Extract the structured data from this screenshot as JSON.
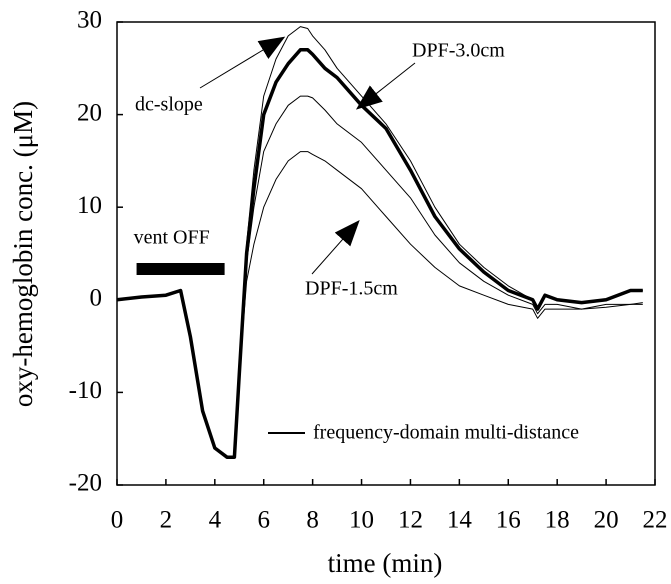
{
  "chart_data": {
    "type": "line",
    "x_label": "time (min)",
    "y_label": "oxy-hemoglobin conc. (μM)",
    "xlim": [
      0,
      22
    ],
    "xticks": [
      0,
      2,
      4,
      6,
      8,
      10,
      12,
      14,
      16,
      18,
      20,
      22
    ],
    "ylim": [
      -20,
      30
    ],
    "yticks": [
      -20,
      -10,
      0,
      10,
      20,
      30
    ],
    "legend": "lower right",
    "x": [
      0,
      1,
      2,
      2.6,
      3,
      3.5,
      4,
      4.5,
      4.8,
      5,
      5.3,
      5.6,
      6,
      6.5,
      7,
      7.5,
      7.8,
      8,
      8.5,
      9,
      10,
      11,
      12,
      13,
      14,
      15,
      16,
      17,
      17.2,
      17.5,
      18,
      19,
      20,
      21,
      21.5
    ],
    "series": [
      {
        "name": "frequency-domain multi-distance",
        "color": "#000000",
        "width": 3.5,
        "values": [
          0,
          0.3,
          0.5,
          1,
          -4,
          -12,
          -16,
          -17,
          -17,
          -8,
          5,
          12,
          20,
          23.5,
          25.5,
          27,
          27,
          26.5,
          25,
          24,
          21,
          18.5,
          14,
          9,
          5.5,
          3,
          1,
          0,
          -1,
          0.5,
          0,
          -0.3,
          0,
          1,
          1
        ]
      },
      {
        "name": "dc-slope",
        "color": "#000000",
        "width": 1,
        "values": [
          0,
          0.3,
          0.5,
          1,
          -4,
          -12,
          -16,
          -17,
          -17,
          -8,
          6,
          14,
          22,
          26,
          28.5,
          29.5,
          29.3,
          28.5,
          27,
          25,
          22,
          19,
          15,
          10,
          6,
          3.5,
          1.5,
          0,
          -1,
          0.5,
          0,
          -0.3,
          0,
          1,
          1
        ]
      },
      {
        "name": "DPF-3.0cm",
        "color": "#000000",
        "width": 1,
        "values": [
          0,
          0.3,
          0.5,
          1,
          -4,
          -12,
          -16,
          -17,
          -17,
          -8,
          4,
          10,
          16,
          19,
          21,
          22,
          22,
          21.8,
          20.5,
          19,
          17,
          14,
          11,
          7,
          4,
          2,
          0.5,
          -0.5,
          -1.5,
          -0.5,
          -0.5,
          -1,
          -0.5,
          -0.5,
          -0.3
        ]
      },
      {
        "name": "DPF-1.5cm",
        "color": "#000000",
        "width": 1,
        "values": [
          0,
          0.3,
          0.5,
          1,
          -4,
          -12,
          -16,
          -17,
          -17,
          -8,
          2,
          6,
          10,
          13,
          15,
          16,
          16,
          15.7,
          15,
          14,
          12,
          9,
          6,
          3.5,
          1.5,
          0.5,
          -0.5,
          -1,
          -2,
          -1,
          -1,
          -1,
          -0.8,
          -0.5,
          -0.5
        ]
      }
    ],
    "spans": [
      {
        "label": "vent OFF",
        "x0": 0.8,
        "x1": 4.4
      }
    ]
  }
}
